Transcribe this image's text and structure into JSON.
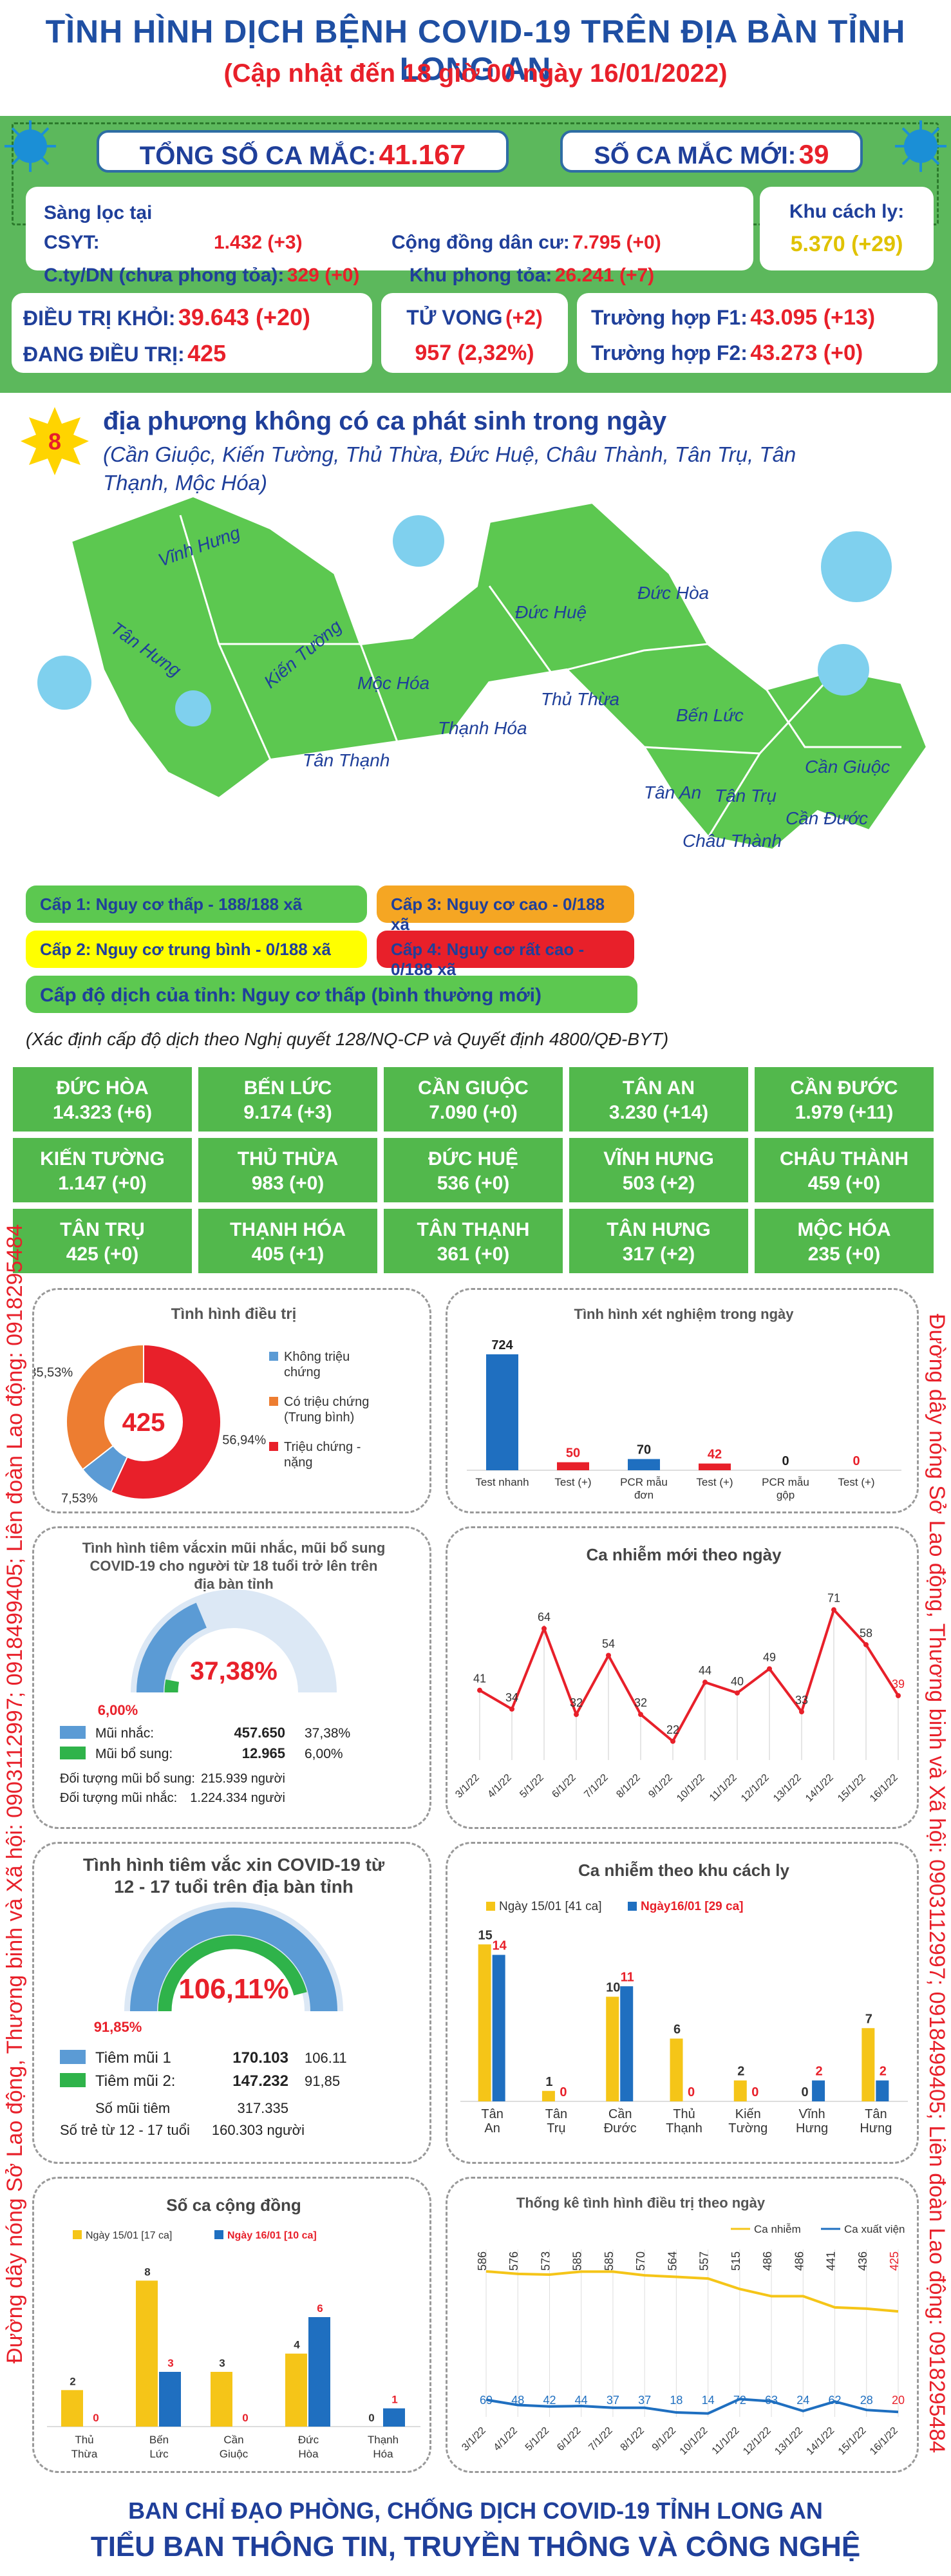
{
  "header": {
    "title": "TÌNH HÌNH DỊCH BỆNH COVID-19 TRÊN ĐỊA BÀN TỈNH LONG AN",
    "subtitle": "(Cập nhật đến 18 giờ 00 ngày 16/01/2022)"
  },
  "totals": {
    "total_label": "TỔNG SỐ CA MẮC:",
    "total_value": "41.167",
    "new_label": "SỐ CA MẮC MỚI:",
    "new_value": "39"
  },
  "sources": {
    "csyt_label": "Sàng lọc tại CSYT:",
    "csyt_value": "1.432 (+3)",
    "cd_label": "Cộng đồng dân cư:",
    "cd_value": "7.795 (+0)",
    "kcl_label": "Khu cách ly:",
    "kcl_value": "5.370 (+29)",
    "cty_label": "C.ty/DN (chưa phong tỏa):",
    "cty_value": "329 (+0)",
    "kpt_label": "Khu phong tỏa:",
    "kpt_value": "26.241 (+7)"
  },
  "status": {
    "recovered_label": "ĐIỀU TRỊ KHỎI:",
    "recovered_value": "39.643 (+20)",
    "treating_label": "ĐANG ĐIỀU TRỊ:",
    "treating_value": "425",
    "death_label": "TỬ VONG",
    "death_change": "(+2)",
    "death_value": "957 (2,32%)",
    "f1_label": "Trường hợp F1:",
    "f1_value": "43.095 (+13)",
    "f2_label": "Trường hợp F2:",
    "f2_value": "43.273 (+0)"
  },
  "zero": {
    "count": "8",
    "title": "địa phương không có ca phát sinh trong ngày",
    "list": "(Cần Giuộc, Kiến Tường, Thủ Thừa, Đức Huệ, Châu Thành, Tân Trụ, Tân Thạnh, Mộc Hóa)"
  },
  "map": {
    "districts": [
      "Vĩnh Hưng",
      "Tân Hưng",
      "Kiến Tường",
      "Mộc Hóa",
      "Tân Thạnh",
      "Thạnh Hóa",
      "Đức Huệ",
      "Đức Hòa",
      "Thủ Thừa",
      "Bến Lức",
      "Tân An",
      "Tân Trụ",
      "Châu Thành",
      "Cần Đước",
      "Cần Giuộc"
    ],
    "levels": [
      "Cấp 1: Nguy cơ thấp - 188/188 xã",
      "Cấp 2: Nguy cơ trung bình - 0/188 xã",
      "Cấp 3: Nguy cơ cao - 0/188 xã",
      "Cấp 4: Nguy cơ rất cao - 0/188 xã"
    ],
    "province": "Cấp độ dịch của tỉnh: Nguy cơ thấp (bình thường mới)",
    "note": "(Xác định cấp độ dịch theo Nghị quyết 128/NQ-CP và Quyết định 4800/QĐ-BYT)",
    "colors": {
      "l1": "#5cc850",
      "l2": "#ffff00",
      "l3": "#f5a623",
      "l4": "#e8202a"
    }
  },
  "districts_grid": [
    {
      "name": "ĐỨC HÒA",
      "value": "14.323 (+6)"
    },
    {
      "name": "BẾN LỨC",
      "value": "9.174 (+3)"
    },
    {
      "name": "CẦN GIUỘC",
      "value": "7.090 (+0)"
    },
    {
      "name": "TÂN AN",
      "value": "3.230 (+14)"
    },
    {
      "name": "CẦN ĐƯỚC",
      "value": "1.979 (+11)"
    },
    {
      "name": "KIẾN TƯỜNG",
      "value": "1.147 (+0)"
    },
    {
      "name": "THỦ THỪA",
      "value": "983 (+0)"
    },
    {
      "name": "ĐỨC HUỆ",
      "value": "536 (+0)"
    },
    {
      "name": "VĨNH HƯNG",
      "value": "503 (+2)"
    },
    {
      "name": "CHÂU THÀNH",
      "value": "459 (+0)"
    },
    {
      "name": "TÂN TRỤ",
      "value": "425 (+0)"
    },
    {
      "name": "THẠNH HÓA",
      "value": "405 (+1)"
    },
    {
      "name": "TÂN THẠNH",
      "value": "361 (+0)"
    },
    {
      "name": "TÂN HƯNG",
      "value": "317 (+2)"
    },
    {
      "name": "MỘC HÓA",
      "value": "235 (+0)"
    }
  ],
  "side_text": {
    "left": "Đường dây nóng Sở Lao động, Thương binh và Xã hội: 0903112997; 0918499405; Liên đoàn Lao động: 0918295484",
    "right": "Đường dây nóng Sở Lao động, Thương binh và Xã hội: 0903112997; 0918499405; Liên đoàn Lao động: 0918295484"
  },
  "footer": {
    "line1": "BAN CHỈ ĐẠO PHÒNG, CHỐNG DỊCH COVID-19 TỈNH LONG AN",
    "line2": "TIỂU BAN THÔNG TIN, TRUYỀN THÔNG VÀ CÔNG NGHỆ"
  },
  "chart_data": [
    {
      "id": "treatment",
      "type": "pie",
      "title": "Tình hình điều trị",
      "center_label": "425",
      "labels": [
        "Không triệu chứng",
        "Có triệu chứng (Trung bình)",
        "Triệu chứng - nặng"
      ],
      "values": [
        7.53,
        35.53,
        56.94
      ],
      "value_labels": [
        "7,53%",
        "35,53%",
        "56,94%"
      ],
      "colors": [
        "#5b9bd5",
        "#ed7d31",
        "#e8202a"
      ]
    },
    {
      "id": "tests",
      "type": "bar",
      "title": "Tình hình xét nghiệm trong ngày",
      "categories": [
        "Test nhanh",
        "Test (+)",
        "PCR mẫu đơn",
        "Test (+)",
        "PCR mẫu gộp",
        "Test (+)"
      ],
      "values": [
        724,
        50,
        70,
        42,
        0,
        0
      ],
      "colors": [
        "#1f6fc0",
        "#e8202a",
        "#1f6fc0",
        "#e8202a",
        "#1f6fc0",
        "#e8202a"
      ]
    },
    {
      "id": "adult_vax",
      "type": "gauge",
      "title": "Tình hình tiêm vắcxin mũi nhắc, mũi bổ sung COVID-19 cho người từ 18 tuổi trở lên trên địa bàn tỉnh",
      "center_label": "37,38%",
      "secondary_label": "6,00%",
      "values": [
        37.38,
        6.0
      ],
      "rows": [
        {
          "label": "Mũi nhắc:",
          "value": "457.650",
          "pct": "37,38%"
        },
        {
          "label": "Mũi bổ sung:",
          "value": "12.965",
          "pct": "6,00%"
        }
      ],
      "extra": [
        {
          "label": "Đối tượng mũi bổ sung:",
          "value": "215.939 người"
        },
        {
          "label": "Đối tượng mũi nhắc:",
          "value": "1.224.334 người"
        }
      ]
    },
    {
      "id": "daily",
      "type": "line",
      "title": "Ca nhiễm mới theo ngày",
      "x": [
        "3/1/22",
        "4/1/22",
        "5/1/22",
        "6/1/22",
        "7/1/22",
        "8/1/22",
        "9/1/22",
        "10/1/22",
        "11/1/22",
        "12/1/22",
        "13/1/22",
        "14/1/22",
        "15/1/22",
        "16/1/22"
      ],
      "values": [
        41,
        34,
        64,
        32,
        54,
        32,
        22,
        44,
        40,
        49,
        33,
        71,
        58,
        39
      ]
    },
    {
      "id": "teen_vax",
      "type": "gauge",
      "title": "Tình hình tiêm vắc xin COVID-19 từ 12 - 17 tuổi trên địa bàn tỉnh",
      "center_label": "106,11%",
      "secondary_label": "91,85%",
      "values": [
        106.11,
        91.85
      ],
      "rows": [
        {
          "label": "Tiêm mũi 1",
          "value": "170.103",
          "pct": "106.11"
        },
        {
          "label": "Tiêm mũi 2:",
          "value": "147.232",
          "pct": "91,85"
        }
      ],
      "extra": [
        {
          "label": "Số mũi tiêm",
          "value": "317.335"
        },
        {
          "label": "Số trẻ từ 12 - 17 tuổi",
          "value": "160.303 người"
        }
      ]
    },
    {
      "id": "quarantine",
      "type": "bar",
      "title": "Ca nhiễm theo khu cách ly",
      "categories": [
        "Tân An",
        "Tân Trụ",
        "Cần Đước",
        "Thủ Thạnh",
        "Kiến Tường",
        "Vĩnh Hưng",
        "Tân Hưng"
      ],
      "series": [
        {
          "name": "Ngày 15/01 [41 ca]",
          "values": [
            15,
            1,
            10,
            6,
            2,
            0,
            7
          ],
          "color": "#f5c518"
        },
        {
          "name": "Ngày16/01 [29 ca]",
          "values": [
            14,
            0,
            11,
            0,
            0,
            2,
            2
          ],
          "color": "#1f6fc0"
        }
      ]
    },
    {
      "id": "community",
      "type": "bar",
      "title": "Số ca cộng đồng",
      "categories": [
        "Thủ Thừa",
        "Bến Lức",
        "Cần Giuộc",
        "Đức Hòa",
        "Thạnh Hóa"
      ],
      "series": [
        {
          "name": "Ngày 15/01 [17 ca]",
          "values": [
            2,
            8,
            3,
            4,
            0
          ],
          "color": "#f5c518"
        },
        {
          "name": "Ngày 16/01 [10 ca]",
          "values": [
            0,
            3,
            0,
            6,
            1
          ],
          "color": "#1f6fc0"
        }
      ]
    },
    {
      "id": "treat_stats",
      "type": "line",
      "title": "Thống kê tình hình điều trị theo ngày",
      "x": [
        "3/1/22",
        "4/1/22",
        "5/1/22",
        "6/1/22",
        "7/1/22",
        "8/1/22",
        "9/1/22",
        "10/1/22",
        "11/1/22",
        "12/1/22",
        "13/1/22",
        "14/1/22",
        "15/1/22",
        "16/1/22"
      ],
      "series": [
        {
          "name": "Ca nhiễm",
          "values": [
            586,
            576,
            573,
            585,
            585,
            570,
            564,
            557,
            515,
            486,
            486,
            441,
            436,
            425
          ],
          "color": "#f5c518"
        },
        {
          "name": "Ca xuất viện",
          "values": [
            69,
            48,
            42,
            44,
            37,
            37,
            18,
            14,
            72,
            63,
            24,
            62,
            28,
            20
          ],
          "color": "#1f6fc0"
        }
      ]
    }
  ]
}
